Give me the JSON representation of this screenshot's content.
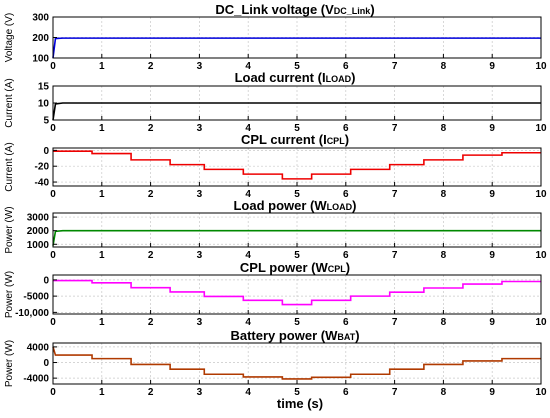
{
  "chart_data": [
    {
      "type": "line",
      "title": {
        "main": "DC_Link voltage (V",
        "sub": "DC_Link",
        "end": ")"
      },
      "ylabel": "Voltage (V)",
      "ylim": [
        100,
        300
      ],
      "yticks": [
        "300",
        "200",
        "100"
      ],
      "color": "#0000dd",
      "series": [
        {
          "x": [
            0,
            0.05,
            0.2,
            10
          ],
          "values": [
            100,
            195,
            197,
            197
          ]
        }
      ]
    },
    {
      "type": "line",
      "title": {
        "main": "Load current (I",
        "sub": "LOAD",
        "end": ")"
      },
      "ylabel": "Current (A)",
      "ylim": [
        5,
        15
      ],
      "yticks": [
        "15",
        "10",
        "5"
      ],
      "color": "#000000",
      "series": [
        {
          "x": [
            0,
            0.05,
            0.2,
            10
          ],
          "values": [
            5,
            9.7,
            10,
            10
          ]
        }
      ]
    },
    {
      "type": "line",
      "title": {
        "main": "CPL current (I",
        "sub": "CPL",
        "end": ")"
      },
      "ylabel": "Current (A)",
      "ylim": [
        -45,
        3
      ],
      "yticks": [
        "0",
        "-20",
        "-40"
      ],
      "color": "#ee0000",
      "series": [
        {
          "x": [
            0,
            0.8,
            1.6,
            2.4,
            3.1,
            3.9,
            4.7,
            5.3,
            6.1,
            6.9,
            7.6,
            8.4,
            9.2,
            10
          ],
          "values": [
            -1,
            -4,
            -12,
            -18,
            -24,
            -30,
            -36,
            -30,
            -24,
            -18,
            -12,
            -6,
            -3,
            -3
          ]
        }
      ]
    },
    {
      "type": "line",
      "title": {
        "main": "Load power (W",
        "sub": "LOAD",
        "end": ")"
      },
      "ylabel": "Power (W)",
      "ylim": [
        800,
        3300
      ],
      "yticks": [
        "3000",
        "2000",
        "1000"
      ],
      "color": "#008800",
      "series": [
        {
          "x": [
            0,
            0.05,
            0.2,
            10
          ],
          "values": [
            900,
            1950,
            2000,
            2000
          ]
        }
      ]
    },
    {
      "type": "line",
      "title": {
        "main": "CPL power (W",
        "sub": "CPL",
        "end": ")"
      },
      "ylabel": "Power (W)",
      "ylim": [
        -10500,
        1500
      ],
      "yticks": [
        "0",
        "-5000",
        "-10,000"
      ],
      "color": "#ff00ff",
      "series": [
        {
          "x": [
            0,
            0.8,
            1.6,
            2.4,
            3.1,
            3.9,
            4.7,
            5.3,
            6.1,
            6.9,
            7.6,
            8.4,
            9.2,
            10
          ],
          "values": [
            -200,
            -900,
            -2400,
            -3700,
            -5100,
            -6300,
            -7600,
            -6300,
            -5000,
            -3800,
            -2500,
            -1300,
            -500,
            -500
          ]
        }
      ]
    },
    {
      "type": "line",
      "title": {
        "main": "Battery power (W",
        "sub": "BAT",
        "end": ")"
      },
      "ylabel": "Power (W)",
      "ylim": [
        -5500,
        5000
      ],
      "yticks": [
        "4000",
        "0",
        "-4000"
      ],
      "color": "#b03a00",
      "series": [
        {
          "x": [
            0,
            0.05,
            0.8,
            1.6,
            2.4,
            3.1,
            3.9,
            4.7,
            5.3,
            6.1,
            6.9,
            7.6,
            8.4,
            9.2,
            10
          ],
          "values": [
            4000,
            1900,
            1000,
            -500,
            -1700,
            -3000,
            -3700,
            -4200,
            -3800,
            -3000,
            -1700,
            -500,
            400,
            1000,
            1000
          ]
        }
      ]
    }
  ],
  "xaxis": {
    "label": "time (s)",
    "xlim": [
      0,
      10
    ],
    "ticks": [
      "0",
      "1",
      "2",
      "3",
      "4",
      "5",
      "6",
      "7",
      "8",
      "9",
      "10"
    ]
  }
}
